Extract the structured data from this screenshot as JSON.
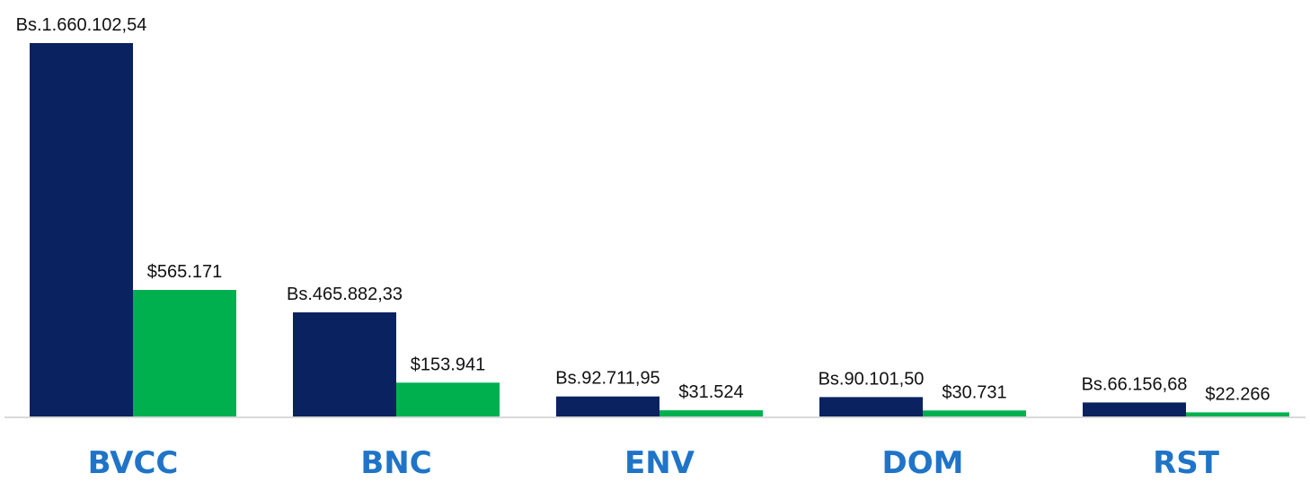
{
  "chart_data": {
    "type": "bar",
    "title": "",
    "xlabel": "",
    "ylabel": "",
    "categories": [
      "BVCC",
      "BNC",
      "ENV",
      "DOM",
      "RST"
    ],
    "series": [
      {
        "values": [
          1660102.54,
          465882.33,
          92711.95,
          90101.5,
          66156.68
        ],
        "labels": [
          "Bs.1.660.102,54",
          "Bs.465.882,33",
          "Bs.92.711,95",
          "Bs.90.101,50",
          "Bs.66.156,68"
        ],
        "color": "#0b2260"
      },
      {
        "values": [
          565171,
          153941,
          31524,
          30731,
          22266
        ],
        "labels": [
          "$565.171",
          "$153.941",
          "$31.524",
          "$30.731",
          "$22.266"
        ],
        "color": "#00b04f"
      }
    ],
    "grid": false,
    "legend": "none",
    "colors": {
      "category_label": "#1f74c8",
      "baseline": "#d9d9d9"
    }
  }
}
